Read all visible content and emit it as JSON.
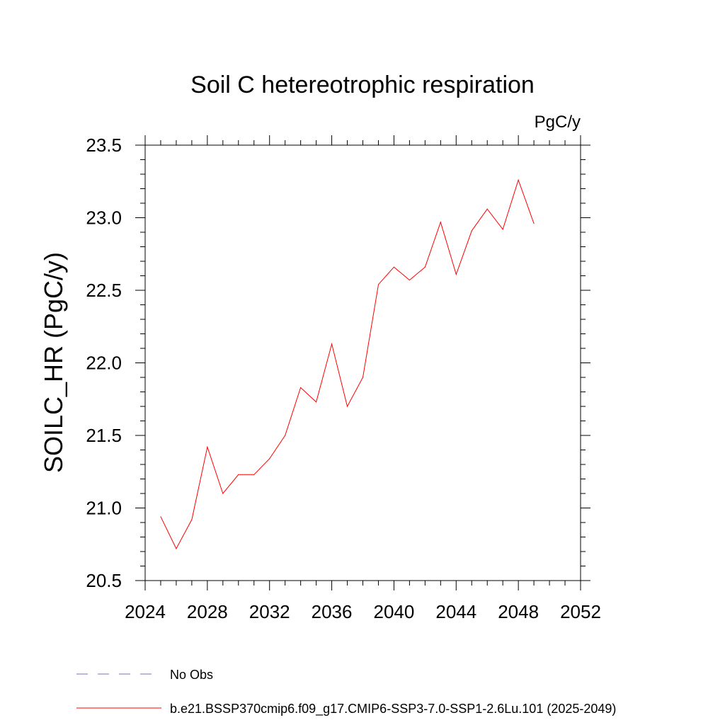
{
  "chart_data": {
    "type": "line",
    "title": "Soil C hetereotrophic respiration",
    "units": "PgC/y",
    "xlabel": "",
    "ylabel": "SOILC_HR  (PgC/y)",
    "xlim": [
      2024,
      2052
    ],
    "ylim": [
      20.5,
      23.5
    ],
    "x_ticks": [
      2024,
      2028,
      2032,
      2036,
      2040,
      2044,
      2048,
      2052
    ],
    "y_ticks": [
      "20.5",
      "21.0",
      "21.5",
      "22.0",
      "22.5",
      "23.0",
      "23.5"
    ],
    "grid": false,
    "series": [
      {
        "name": "b.e21.BSSP370cmip6.f09_g17.CMIP6-SSP3-7.0-SSP1-2.6Lu.101 (2025-2049)",
        "color": "#ff0000",
        "x": [
          2025,
          2026,
          2027,
          2028,
          2029,
          2030,
          2031,
          2032,
          2033,
          2034,
          2035,
          2036,
          2037,
          2038,
          2039,
          2040,
          2041,
          2042,
          2043,
          2044,
          2045,
          2046,
          2047,
          2048,
          2049
        ],
        "values": [
          20.94,
          20.72,
          20.92,
          21.42,
          21.1,
          21.23,
          21.23,
          21.34,
          21.5,
          21.83,
          21.73,
          22.13,
          21.7,
          21.9,
          22.54,
          22.66,
          22.57,
          22.66,
          22.97,
          22.61,
          22.91,
          23.06,
          22.92,
          23.26,
          22.96
        ]
      }
    ],
    "legend": [
      {
        "label": "No Obs",
        "color": "#7a6fc4",
        "style": "dashed"
      },
      {
        "label": "b.e21.BSSP370cmip6.f09_g17.CMIP6-SSP3-7.0-SSP1-2.6Lu.101 (2025-2049)",
        "color": "#ff0000",
        "style": "solid"
      }
    ]
  }
}
